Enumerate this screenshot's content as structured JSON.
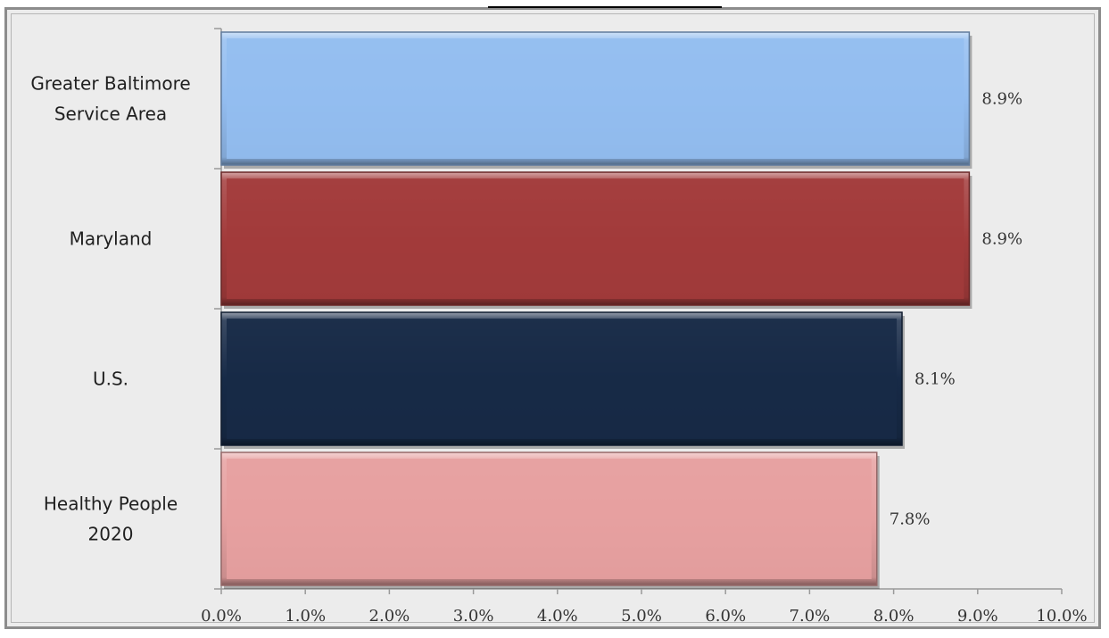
{
  "chart_data": {
    "type": "bar",
    "orientation": "horizontal",
    "title": "",
    "xlabel": "",
    "ylabel": "",
    "xlim": [
      0,
      10
    ],
    "grid": false,
    "legend": "none",
    "categories": [
      [
        "Greater Baltimore",
        "Service Area"
      ],
      [
        "Maryland"
      ],
      [
        "U.S."
      ],
      [
        "Healthy People",
        "2020"
      ]
    ],
    "values": [
      8.9,
      8.9,
      8.1,
      7.8
    ],
    "value_labels": [
      "8.9%",
      "8.9%",
      "8.1%",
      "7.8%"
    ],
    "colors": [
      "#93bdf0",
      "#a23b3b",
      "#172a47",
      "#e6a0a0"
    ],
    "tick_values": [
      0,
      1,
      2,
      3,
      4,
      5,
      6,
      7,
      8,
      9,
      10
    ],
    "tick_labels": [
      "0.0%",
      "1.0%",
      "2.0%",
      "3.0%",
      "4.0%",
      "5.0%",
      "6.0%",
      "7.0%",
      "8.0%",
      "9.0%",
      "10.0%"
    ]
  }
}
